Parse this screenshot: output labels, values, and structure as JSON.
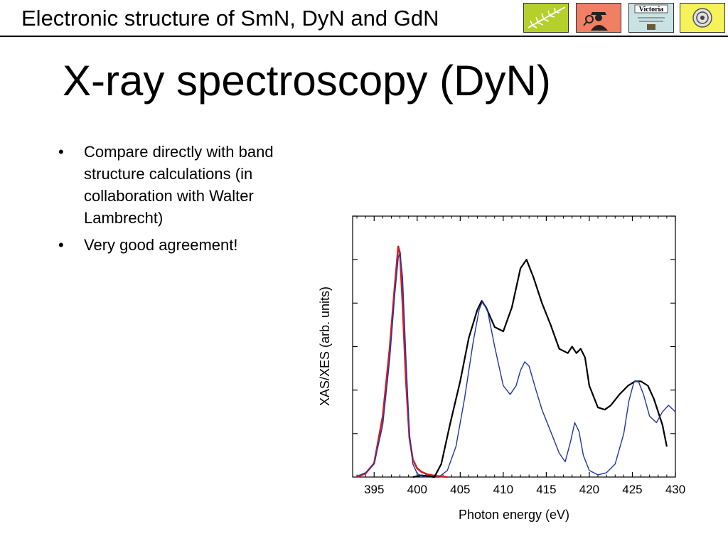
{
  "header": {
    "title": "Electronic structure of SmN, DyN and GdN",
    "logos": [
      {
        "icon": "fern-icon",
        "bg": "#b5cf2b"
      },
      {
        "icon": "detective-icon",
        "bg": "#f07f63"
      },
      {
        "icon": "victoria-crest-icon",
        "bg": "#c9e3e5",
        "text": "Victoria"
      },
      {
        "icon": "spiral-icon",
        "bg": "#f6f25a"
      }
    ]
  },
  "slide": {
    "title": "X-ray spectroscopy (DyN)",
    "bullets": [
      "Compare directly with band structure calculations (in collaboration with Walter Lambrecht)",
      "Very good agreement!"
    ]
  },
  "chart_data": {
    "type": "line",
    "xlabel": "Photon energy (eV)",
    "ylabel": "XAS/XES (arb. units)",
    "xlim": [
      392.5,
      430
    ],
    "ylim": [
      0,
      6
    ],
    "xticks": [
      395,
      400,
      405,
      410,
      415,
      420,
      425,
      430
    ],
    "yticks_count": 6,
    "yticklabels_shown": false,
    "grid": false,
    "colors": {
      "exp": "#000000",
      "calc": "#2233aa",
      "xes_exp": "#d41f1f"
    },
    "series": [
      {
        "key": "xes_exp",
        "color": "#d41f1f",
        "x": [
          393,
          394,
          395,
          396,
          396.8,
          397.4,
          397.8,
          398,
          398.3,
          398.7,
          399.1,
          399.5,
          400,
          400.5,
          401.2,
          402,
          403.5
        ],
        "y": [
          0.0,
          0.08,
          0.32,
          1.4,
          2.95,
          4.4,
          5.3,
          5.15,
          4.0,
          2.2,
          0.9,
          0.4,
          0.2,
          0.12,
          0.06,
          0.03,
          0.0
        ]
      },
      {
        "key": "xes_calc",
        "color": "#2233aa",
        "x": [
          393,
          394,
          395,
          396,
          396.8,
          397.4,
          397.8,
          398,
          398.3,
          398.7,
          399.1,
          399.5,
          400,
          400.5,
          401
        ],
        "y": [
          0.02,
          0.1,
          0.3,
          1.2,
          2.7,
          4.2,
          5.05,
          5.15,
          4.6,
          2.7,
          1.0,
          0.3,
          0.08,
          0.03,
          0.0
        ]
      },
      {
        "key": "exp",
        "color": "#000000",
        "x": [
          399.5,
          400.5,
          402,
          402.8,
          403.8,
          405,
          406,
          407,
          407.5,
          408,
          409,
          410,
          411,
          412,
          412.7,
          413.5,
          414.5,
          415.5,
          416.5,
          417.5,
          418,
          418.5,
          419,
          419.5,
          420,
          421,
          421.8,
          422.5,
          423.5,
          424.5,
          425.3,
          426,
          426.8,
          427.5,
          428.5,
          429
        ],
        "y": [
          0.0,
          0.04,
          0.0,
          0.3,
          1.2,
          2.2,
          3.2,
          3.85,
          4.05,
          3.9,
          3.45,
          3.35,
          3.9,
          4.8,
          5.0,
          4.6,
          4.0,
          3.5,
          2.95,
          2.85,
          3.0,
          2.85,
          2.95,
          2.75,
          2.1,
          1.6,
          1.55,
          1.65,
          1.9,
          2.1,
          2.2,
          2.2,
          2.1,
          1.8,
          1.2,
          0.7
        ]
      },
      {
        "key": "calc",
        "color": "#2233aa",
        "x": [
          402.5,
          403.5,
          404.5,
          405.5,
          406.5,
          407.2,
          407.6,
          408.2,
          409,
          410,
          410.8,
          411.5,
          412,
          412.5,
          413,
          413.8,
          414.5,
          415.5,
          416.5,
          417.2,
          417.8,
          418.3,
          418.8,
          419.3,
          420,
          421,
          422,
          423,
          424,
          424.6,
          425.2,
          425.7,
          426.3,
          427,
          427.8,
          428.5,
          429.2,
          430
        ],
        "y": [
          0.0,
          0.15,
          0.7,
          1.8,
          3.1,
          3.85,
          4.05,
          3.8,
          3.0,
          2.1,
          1.9,
          2.1,
          2.45,
          2.65,
          2.55,
          2.0,
          1.55,
          1.05,
          0.55,
          0.35,
          0.8,
          1.25,
          1.05,
          0.5,
          0.15,
          0.05,
          0.1,
          0.3,
          1.0,
          1.75,
          2.2,
          2.2,
          1.9,
          1.4,
          1.25,
          1.5,
          1.65,
          1.5
        ]
      }
    ]
  }
}
